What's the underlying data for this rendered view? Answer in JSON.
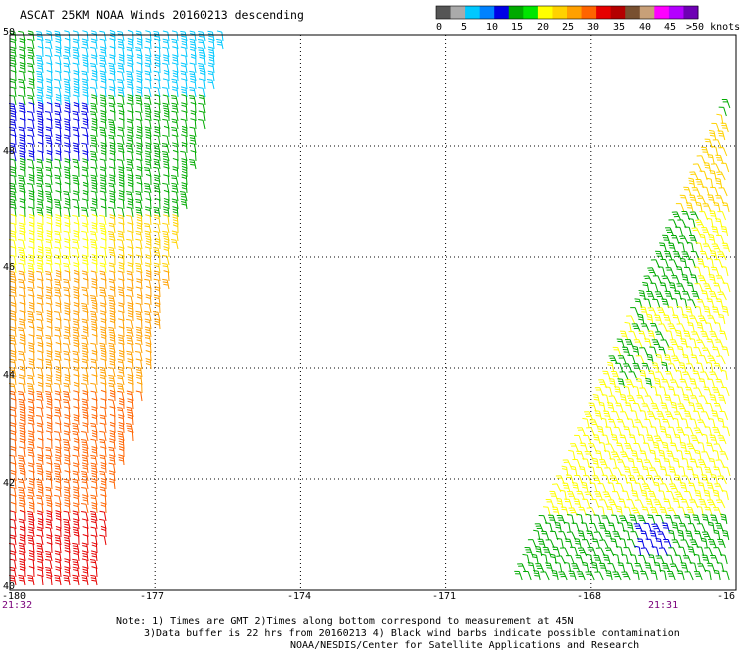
{
  "header": {
    "title": "ASCAT 25KM NOAA Winds 20160213 descending"
  },
  "scale": {
    "colors": [
      "#555555",
      "#aaaaaa",
      "#00c8ff",
      "#0082ff",
      "#0000e6",
      "#00aa00",
      "#00e600",
      "#ffff00",
      "#ffd200",
      "#ffa000",
      "#ff6400",
      "#e60000",
      "#b40000",
      "#785030",
      "#c8a078",
      "#ff00ff",
      "#b400ff",
      "#6e00b4"
    ],
    "labels": [
      {
        "text": "0",
        "pos": 0
      },
      {
        "text": "5",
        "pos": 1
      },
      {
        "text": "10",
        "pos": 2
      },
      {
        "text": "15",
        "pos": 3
      },
      {
        "text": "20",
        "pos": 4
      },
      {
        "text": "25",
        "pos": 5
      },
      {
        "text": "30",
        "pos": 6
      },
      {
        "text": "35",
        "pos": 7
      },
      {
        "text": "40",
        "pos": 8
      },
      {
        "text": "45",
        "pos": 9
      },
      {
        "text": ">50 knots",
        "pos": 10
      }
    ]
  },
  "axes": {
    "y_labels": [
      "50",
      "48",
      "46",
      "44",
      "42",
      "40"
    ],
    "x_labels": [
      "-180",
      "-177",
      "-174",
      "-171",
      "-168",
      "-16"
    ]
  },
  "times": {
    "left": "21:32",
    "right": "21:31"
  },
  "notes": {
    "line1": "Note: 1) Times are GMT 2)Times along bottom correspond to measurement at 45N",
    "line2": "3)Data buffer is 22 hrs from 20160213 4) Black wind barbs indicate possible contamination",
    "line3": "NOAA/NESDIS/Center for Satellite Applications and Research"
  },
  "swaths": {
    "left": {
      "bands": [
        {
          "lat_from": 48.6,
          "lat_to": 50,
          "color": "#00c8ff"
        },
        {
          "lat_from": 47.6,
          "lat_to": 48.6,
          "color": "#0000e6"
        },
        {
          "lat_from": 46.6,
          "lat_to": 47.6,
          "color": "#00aa00"
        },
        {
          "lat_from": 45.7,
          "lat_to": 46.6,
          "color": "#ffd200"
        },
        {
          "lat_from": 43.5,
          "lat_to": 45.7,
          "color": "#ffa000"
        },
        {
          "lat_from": 41.3,
          "lat_to": 43.5,
          "color": "#ff6400"
        },
        {
          "lat_from": 40,
          "lat_to": 41.3,
          "color": "#e60000"
        }
      ]
    },
    "right": {
      "bands": [
        {
          "lat_from": 46.8,
          "lat_to": 49.2,
          "color": "#ffd200"
        },
        {
          "lat_from": 45.0,
          "lat_to": 46.8,
          "color": "#00aa00"
        },
        {
          "lat_from": 42.4,
          "lat_to": 45.0,
          "color": "#ffff00"
        },
        {
          "lat_from": 41.3,
          "lat_to": 42.4,
          "color": "#ffff00"
        },
        {
          "lat_from": 40,
          "lat_to": 41.3,
          "color": "#00aa00"
        }
      ]
    }
  }
}
